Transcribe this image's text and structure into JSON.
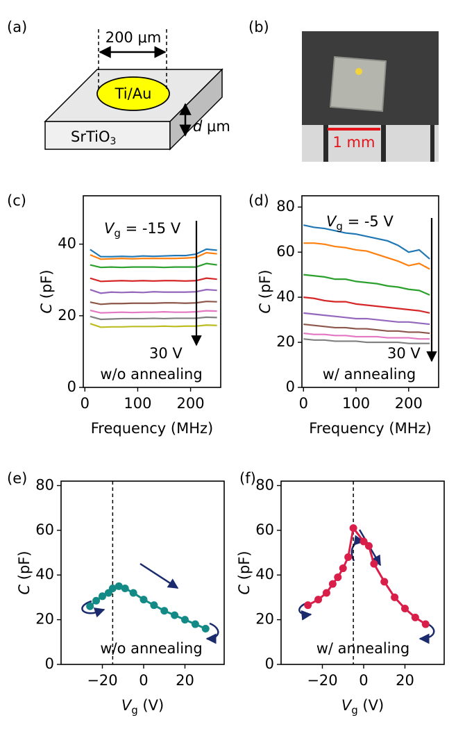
{
  "panels": {
    "a": {
      "label": "(a)",
      "width_text": "200 μm",
      "electrode": "Ti/Au",
      "substrate": "SrTiO",
      "substrate_sub": "3",
      "thickness_var": "d",
      "thickness_unit": "μm"
    },
    "b": {
      "label": "(b)",
      "scale_text": "1 mm"
    }
  },
  "chart_data": [
    {
      "type": "line",
      "panel_label": "(c)",
      "xlabel": "Frequency (MHz)",
      "ylabel_var": "C",
      "ylabel_unit": "(pF)",
      "xlim": [
        -3,
        257
      ],
      "ylim": [
        0,
        53.5
      ],
      "xticks": [
        0,
        100,
        200
      ],
      "yticks": [
        0,
        20,
        40
      ],
      "annotation_var": "V",
      "annotation_sub": "g",
      "annotation_text": "= -15 V",
      "arrow_end_label": "30 V",
      "note": "w/o annealing",
      "x": [
        10,
        30,
        50,
        70,
        90,
        110,
        130,
        150,
        170,
        190,
        210,
        230,
        250
      ],
      "series": [
        {
          "color": "#1f77b4",
          "values": [
            38.5,
            36.5,
            36.5,
            36.6,
            36.5,
            36.7,
            36.6,
            36.7,
            36.8,
            36.8,
            37.2,
            38.6,
            38.3
          ]
        },
        {
          "color": "#ff7f0e",
          "values": [
            37,
            35.8,
            35.9,
            36,
            35.9,
            36,
            36,
            36,
            36,
            36.1,
            36.3,
            37.6,
            37.3
          ]
        },
        {
          "color": "#2ca02c",
          "values": [
            34.2,
            33.5,
            33.6,
            33.5,
            33.6,
            33.6,
            33.6,
            33.5,
            33.6,
            33.6,
            33.6,
            34.6,
            34.2
          ]
        },
        {
          "color": "#d62728",
          "values": [
            30.5,
            29.6,
            29.7,
            29.8,
            29.7,
            29.8,
            29.7,
            29.8,
            29.8,
            29.7,
            29.8,
            30.5,
            30.2
          ]
        },
        {
          "color": "#9467bd",
          "values": [
            27.3,
            26.3,
            26.6,
            26.5,
            26.6,
            26.5,
            26.7,
            26.6,
            26.6,
            26.6,
            26.7,
            27.3,
            27.1
          ]
        },
        {
          "color": "#8c564b",
          "values": [
            23.8,
            23.2,
            23.4,
            23.4,
            23.5,
            23.5,
            23.5,
            23.6,
            23.6,
            23.5,
            23.6,
            24,
            23.9
          ]
        },
        {
          "color": "#e377c2",
          "values": [
            21.5,
            20.8,
            20.9,
            21,
            20.9,
            21,
            21,
            21.1,
            21,
            21,
            21.1,
            21.4,
            21.3
          ]
        },
        {
          "color": "#7f7f7f",
          "values": [
            19.8,
            19,
            19.1,
            19.2,
            19.2,
            19.2,
            19.3,
            19.2,
            19.3,
            19.3,
            19.3,
            19.6,
            19.5
          ]
        },
        {
          "color": "#bcbd22",
          "values": [
            17.8,
            16.8,
            16.9,
            16.9,
            17,
            17,
            17,
            17.1,
            17,
            17.1,
            17.1,
            17.4,
            17.3
          ]
        }
      ]
    },
    {
      "type": "line",
      "panel_label": "(d)",
      "xlabel": "Frequency (MHz)",
      "ylabel_var": "C",
      "ylabel_unit": "(pF)",
      "xlim": [
        -3,
        257
      ],
      "ylim": [
        0,
        85
      ],
      "xticks": [
        0,
        100,
        200
      ],
      "yticks": [
        0,
        20,
        40,
        60,
        80
      ],
      "annotation_var": "V",
      "annotation_sub": "g",
      "annotation_text": "= -5 V",
      "arrow_end_label": "30 V",
      "note": "w/ annealing",
      "x": [
        0,
        20,
        40,
        60,
        80,
        100,
        120,
        140,
        160,
        180,
        200,
        220,
        240
      ],
      "series": [
        {
          "color": "#1f77b4",
          "values": [
            72,
            71,
            70.5,
            69.5,
            68.5,
            68,
            67,
            66,
            65,
            63,
            60,
            61,
            57
          ]
        },
        {
          "color": "#ff7f0e",
          "values": [
            64,
            64,
            63.5,
            62.5,
            62,
            61,
            60.5,
            59,
            57.5,
            56,
            54,
            55,
            52.5
          ]
        },
        {
          "color": "#2ca02c",
          "values": [
            50,
            49.5,
            49,
            48,
            48,
            47,
            46.5,
            46,
            45,
            44.5,
            43.5,
            43,
            41
          ]
        },
        {
          "color": "#d62728",
          "values": [
            40,
            39.5,
            38.5,
            38,
            38,
            37,
            36.5,
            36,
            35.5,
            35,
            34.5,
            34,
            33
          ]
        },
        {
          "color": "#9467bd",
          "values": [
            33,
            32.5,
            32,
            31.5,
            31,
            30.5,
            30.5,
            30,
            29.5,
            29,
            29,
            28.5,
            28
          ]
        },
        {
          "color": "#8c564b",
          "values": [
            28,
            27.5,
            27,
            26.5,
            26.5,
            26,
            26,
            25.5,
            25,
            25,
            24.5,
            24.5,
            24
          ]
        },
        {
          "color": "#e377c2",
          "values": [
            24,
            23.5,
            23.5,
            23,
            23,
            22.5,
            22.5,
            22.5,
            22,
            22,
            22,
            21.5,
            21.5
          ]
        },
        {
          "color": "#7f7f7f",
          "values": [
            21.5,
            21,
            21,
            20.5,
            20.5,
            20.5,
            20,
            20,
            20,
            20,
            19.5,
            19.5,
            19.5
          ]
        }
      ]
    },
    {
      "type": "line",
      "markers": true,
      "panel_label": "(e)",
      "xlabel_var": "V",
      "xlabel_sub": "g",
      "xlabel_unit": "(V)",
      "ylabel_var": "C",
      "ylabel_unit": "(pF)",
      "xlim": [
        -40,
        39
      ],
      "ylim": [
        0,
        82
      ],
      "xticks": [
        {
          "value": -20,
          "label": "−20"
        },
        0,
        20
      ],
      "yticks": [
        0,
        20,
        40,
        60,
        80
      ],
      "vline": -15,
      "note": "w/o annealing",
      "x": [
        -26,
        -23,
        -20,
        -17,
        -15,
        -12,
        -9,
        -5,
        0,
        5,
        10,
        15,
        20,
        25,
        30
      ],
      "series": [
        {
          "color": "#138a85",
          "values": [
            26,
            28.5,
            30.5,
            32,
            34,
            35,
            34,
            32,
            29,
            26.5,
            24,
            22,
            20,
            18,
            16
          ]
        }
      ]
    },
    {
      "type": "line",
      "markers": true,
      "panel_label": "(f)",
      "xlabel_var": "V",
      "xlabel_sub": "g",
      "xlabel_unit": "(V)",
      "ylabel_var": "C",
      "ylabel_unit": "(pF)",
      "xlim": [
        -40,
        39
      ],
      "ylim": [
        0,
        82
      ],
      "xticks": [
        {
          "value": -20,
          "label": "−20"
        },
        0,
        20
      ],
      "yticks": [
        0,
        20,
        40,
        60,
        80
      ],
      "vline": -5,
      "note": "w/ annealing",
      "x": [
        -27,
        -22,
        -18,
        -15,
        -12.5,
        -10,
        -7.5,
        -5,
        0,
        2.5,
        5,
        10,
        15,
        20,
        25,
        30
      ],
      "series": [
        {
          "color": "#d91e4a",
          "values": [
            26.5,
            29,
            32,
            36,
            39,
            43,
            48,
            61,
            55,
            53,
            45,
            37,
            30,
            25,
            21,
            18
          ]
        }
      ]
    }
  ]
}
